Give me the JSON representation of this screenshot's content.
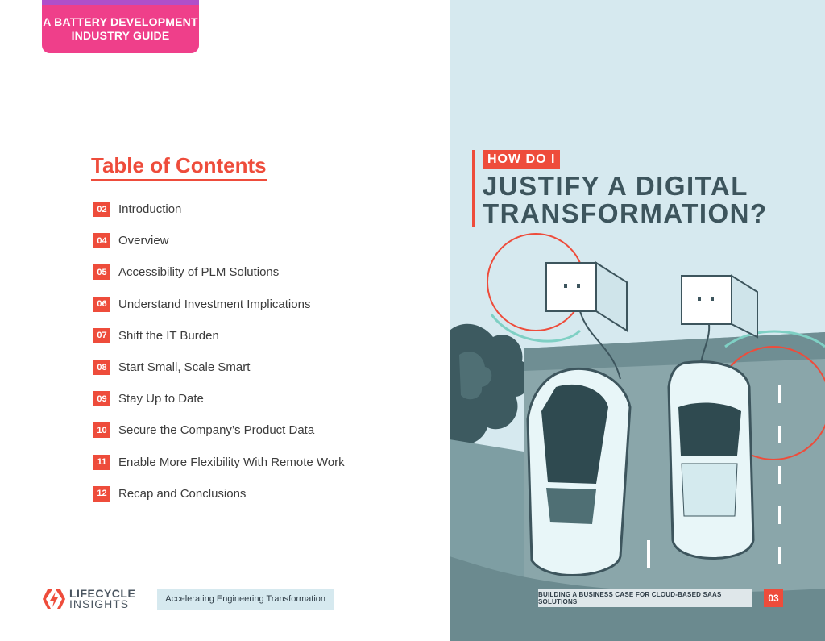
{
  "left_page": {
    "guide_tab": {
      "line1": "A BATTERY DEVELOPMENT",
      "line2": "INDUSTRY GUIDE"
    },
    "toc_title": "Table of Contents",
    "toc_items": [
      {
        "num": "02",
        "label": "Introduction"
      },
      {
        "num": "04",
        "label": "Overview"
      },
      {
        "num": "05",
        "label": "Accessibility of PLM Solutions"
      },
      {
        "num": "06",
        "label": "Understand Investment Implications"
      },
      {
        "num": "07",
        "label": "Shift the IT Burden"
      },
      {
        "num": "08",
        "label": "Start Small, Scale Smart"
      },
      {
        "num": "09",
        "label": "Stay Up to Date"
      },
      {
        "num": "10",
        "label": "Secure the Company’s Product Data"
      },
      {
        "num": "11",
        "label": "Enable More Flexibility With Remote Work"
      },
      {
        "num": "12",
        "label": "Recap and Conclusions"
      }
    ],
    "brand": {
      "line1": "LIFECYCLE",
      "line2": "INSIGHTS",
      "tagline": "Accelerating Engineering Transformation"
    }
  },
  "right_page": {
    "kicker": "HOW DO I",
    "title_line1": "JUSTIFY A DIGITAL",
    "title_line2": "TRANSFORMATION?",
    "footer_text": "BUILDING A BUSINESS CASE FOR CLOUD-BASED SAAS SOLUTIONS",
    "page_number": "03"
  },
  "colors": {
    "accent": "#ee4c3b",
    "pink_tab": "#ef3f8a",
    "purple_edge": "#b04fc9",
    "heading_teal": "#3d555d",
    "panel_bg": "#d6e9ef"
  },
  "icons": [
    "lifecycle-insights-logo-icon",
    "ev-charger-icon",
    "electric-car-icon",
    "tree-icon"
  ]
}
